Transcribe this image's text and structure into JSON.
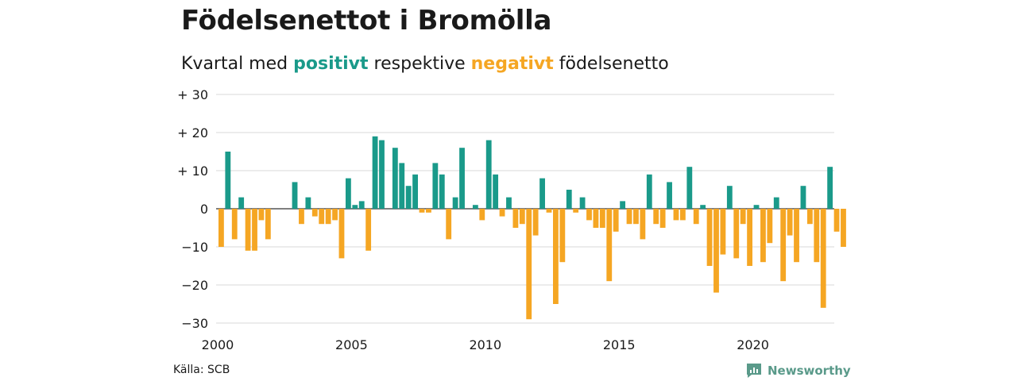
{
  "title": "Födelsenettot i Bromölla",
  "subtitle": {
    "prefix": "Kvartal med",
    "positive": "positivt",
    "middle": "respektive",
    "negative": "negativt",
    "suffix": "födelsenetto"
  },
  "colors": {
    "positive": "#1a9a8a",
    "negative": "#f5a623",
    "grid": "#d9d9d9",
    "zero": "#333333",
    "text": "#1a1a1a",
    "brand": "#5a9a8a"
  },
  "source": "Källa: SCB",
  "brand": {
    "name": "Newsworthy",
    "icon": "newsworthy-logo-icon"
  },
  "chart_data": {
    "type": "bar",
    "title": "Födelsenettot i Bromölla",
    "ylim": [
      -30,
      30
    ],
    "yticks": [
      {
        "value": 30,
        "label": "+ 30"
      },
      {
        "value": 20,
        "label": "+ 20"
      },
      {
        "value": 10,
        "label": "+ 10"
      },
      {
        "value": 0,
        "label": "0"
      },
      {
        "value": -10,
        "label": "−10"
      },
      {
        "value": -20,
        "label": "−20"
      },
      {
        "value": -30,
        "label": "−30"
      }
    ],
    "xticks": [
      "2000",
      "2005",
      "2010",
      "2015",
      "2020"
    ],
    "x_start": "2000 Q1",
    "frequency": "quarterly",
    "grid": true,
    "values": [
      -10,
      15,
      -8,
      3,
      -11,
      -11,
      -3,
      -8,
      0,
      0,
      0,
      7,
      -4,
      3,
      -2,
      -4,
      -4,
      -3,
      -13,
      8,
      1,
      2,
      -11,
      19,
      18,
      0,
      16,
      12,
      6,
      9,
      -1,
      -1,
      12,
      9,
      -8,
      3,
      16,
      0,
      1,
      -3,
      18,
      9,
      -2,
      3,
      -5,
      -4,
      -29,
      -7,
      8,
      -1,
      -25,
      -14,
      5,
      -1,
      3,
      -3,
      -5,
      -5,
      -19,
      -6,
      2,
      -4,
      -4,
      -8,
      9,
      -4,
      -5,
      7,
      -3,
      -3,
      11,
      -4,
      1,
      -15,
      -22,
      -12,
      6,
      -13,
      -4,
      -15,
      1,
      -14,
      -9,
      3,
      -19,
      -7,
      -14,
      6,
      -4,
      -14,
      -26,
      11,
      -6,
      -10
    ]
  }
}
